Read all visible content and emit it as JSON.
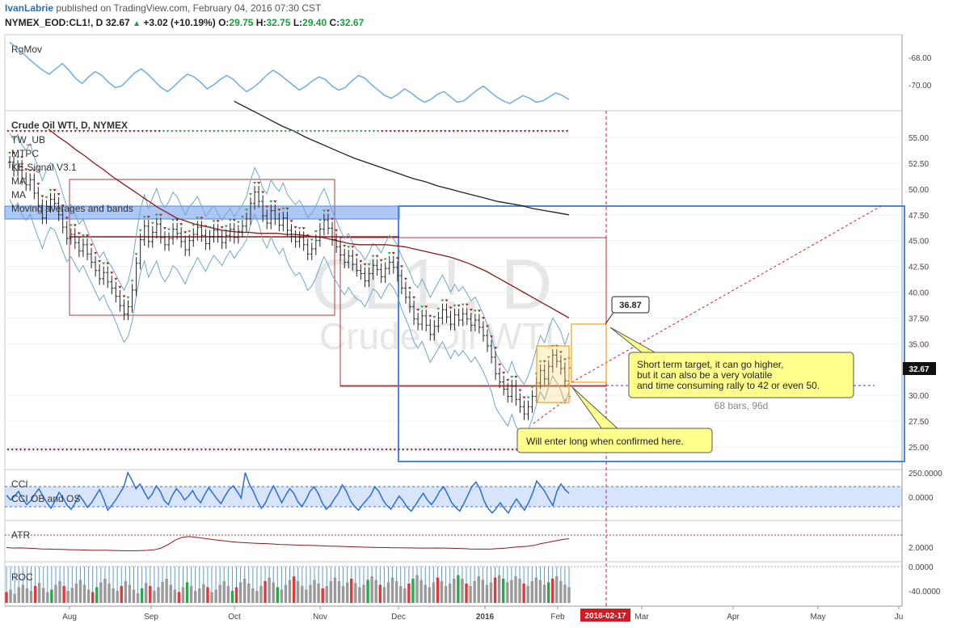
{
  "header": {
    "author": "IvanLabrie",
    "published": "published on TradingView.com, February 04, 2016 07:30 CST",
    "symbol": "NYMEX_EOD:CL1!, D",
    "last": "32.67",
    "arrow": "▲",
    "change": "+3.02 (+10.19%)",
    "o_label": "O:",
    "o": "29.75",
    "h_label": "H:",
    "h": "32.75",
    "l_label": "L:",
    "l": "29.40",
    "c_label": "C:",
    "c": "32.67"
  },
  "watermark": {
    "ticker": "CL1!, D",
    "name": "Crude Oil WTI"
  },
  "colors": {
    "up": "#1a7a2a",
    "down": "#b31c1c",
    "band": "#6fa7c9",
    "ma_red": "#8b1a1a",
    "ma_black": "#222222",
    "blue_box": "#4a86e8",
    "note_bg": "#ffff8c",
    "date_tag": "#d8181f"
  },
  "rgmov": {
    "label": "RgMov",
    "ticks": [
      "-68.00",
      "-70.00"
    ],
    "values": [
      -66.8,
      -67.2,
      -67.6,
      -68.1,
      -68.5,
      -68.9,
      -69.2,
      -68.8,
      -68.4,
      -68.9,
      -69.5,
      -69.9,
      -69.4,
      -69.0,
      -69.3,
      -69.8,
      -70.2,
      -70.1,
      -69.6,
      -69.1,
      -68.8,
      -69.2,
      -69.7,
      -70.2,
      -70.5,
      -70.1,
      -69.6,
      -69.2,
      -69.4,
      -69.8,
      -70.3,
      -70.0,
      -69.6,
      -69.3,
      -69.6,
      -70.1,
      -70.5,
      -70.2,
      -69.8,
      -69.3,
      -68.9,
      -69.2,
      -69.6,
      -70.0,
      -70.4,
      -70.1,
      -69.7,
      -69.4,
      -69.6,
      -70.1,
      -70.4,
      -70.2,
      -69.7,
      -69.3,
      -69.5,
      -70.0,
      -70.4,
      -70.8,
      -71.0,
      -70.7,
      -70.3,
      -70.6,
      -71.0,
      -71.3,
      -71.1,
      -70.7,
      -70.5,
      -70.9,
      -71.3,
      -71.2,
      -70.8,
      -70.4,
      -70.1,
      -70.5,
      -70.9,
      -71.2,
      -71.4,
      -71.1,
      -70.8,
      -71.0,
      -71.3,
      -71.2,
      -70.9,
      -70.6,
      -70.8,
      -71.1
    ]
  },
  "price": {
    "title": "Crude Oil WTI, D, NYMEX",
    "legend": [
      "TW_UB",
      "MTPC",
      "KE Signal V3.1",
      "MA",
      "MA",
      "Moving averages and bands"
    ],
    "ticks": [
      "55.00",
      "52.50",
      "50.00",
      "47.50",
      "45.00",
      "42.50",
      "40.00",
      "37.50",
      "35.00",
      "32.67",
      "30.00",
      "27.50",
      "25.00"
    ],
    "last_tag": "32.67",
    "target_label": "36.87",
    "bars_note": "68 bars, 96d",
    "note_target": [
      "Short term target, it can go higher,",
      "but it can also be a very volatile",
      "and time consuming rally to 42 or even 50."
    ],
    "note_entry": "Will enter long when confirmed here.",
    "closes": [
      52.6,
      51.8,
      52.2,
      51.0,
      50.4,
      50.9,
      49.6,
      48.4,
      47.2,
      48.3,
      49.0,
      48.6,
      47.5,
      46.3,
      45.2,
      45.6,
      44.8,
      44.0,
      44.6,
      43.7,
      42.9,
      42.1,
      41.3,
      41.9,
      41.0,
      40.4,
      39.6,
      38.7,
      37.9,
      38.6,
      40.2,
      42.8,
      45.1,
      46.4,
      44.9,
      45.8,
      46.6,
      45.3,
      44.6,
      45.2,
      46.1,
      45.7,
      44.9,
      44.1,
      45.0,
      45.6,
      46.3,
      45.5,
      44.7,
      45.4,
      46.0,
      45.4,
      44.8,
      45.5,
      46.1,
      45.3,
      45.9,
      46.4,
      47.1,
      48.6,
      49.7,
      48.8,
      47.4,
      46.7,
      47.9,
      47.1,
      46.5,
      47.2,
      46.0,
      45.4,
      44.9,
      45.3,
      44.6,
      43.7,
      44.2,
      45.0,
      46.1,
      47.0,
      46.2,
      45.1,
      44.4,
      43.6,
      42.9,
      43.5,
      42.7,
      42.1,
      41.8,
      41.1,
      41.8,
      42.6,
      42.2,
      41.5,
      42.3,
      42.9,
      42.4,
      41.6,
      40.4,
      39.5,
      38.6,
      37.4,
      36.9,
      37.7,
      36.8,
      35.9,
      36.7,
      37.5,
      38.3,
      37.6,
      36.9,
      37.8,
      37.3,
      37.9,
      37.4,
      36.8,
      37.3,
      36.6,
      35.8,
      34.8,
      33.7,
      32.1,
      31.3,
      30.6,
      29.9,
      30.9,
      29.6,
      28.9,
      28.2,
      28.9,
      29.9,
      31.2,
      32.4,
      31.6,
      32.8,
      33.9,
      33.3,
      32.6,
      31.4,
      32.67
    ],
    "ma_fast": [
      55.8,
      55.1,
      54.5,
      53.8,
      53.2,
      52.5,
      51.9,
      51.2,
      50.6,
      50.0,
      49.4,
      48.8,
      48.2,
      47.7,
      47.2,
      46.9,
      46.6,
      46.4,
      46.2,
      46.0,
      45.9,
      45.8,
      45.8,
      45.7,
      45.7,
      45.7,
      45.6,
      45.6,
      45.5,
      45.4,
      45.3,
      45.1,
      44.9,
      44.7,
      44.6,
      44.6,
      44.6,
      44.6,
      44.5,
      44.4,
      44.2,
      44.0,
      43.8,
      43.6,
      43.4,
      43.1,
      42.8,
      42.4,
      42.0,
      41.5,
      41.0,
      40.5,
      40.0,
      39.5,
      39.0,
      38.5,
      38.0,
      37.5
    ],
    "ma_slow": [
      58.5,
      57.9,
      57.3,
      56.7,
      56.1,
      55.6,
      55.0,
      54.5,
      54.0,
      53.5,
      53.0,
      52.6,
      52.2,
      51.8,
      51.4,
      51.0,
      50.7,
      50.3,
      50.0,
      49.7,
      49.4,
      49.1,
      48.8,
      48.6,
      48.4,
      48.1,
      47.9,
      47.7,
      47.5
    ],
    "ma_slow_x0": 55
  },
  "cci": {
    "label": "CCI",
    "label2": "CCI OB and OS",
    "ticks": [
      "250.0000",
      "0.0000"
    ],
    "values": [
      20,
      -30,
      10,
      60,
      -20,
      -80,
      -40,
      30,
      90,
      10,
      -60,
      -120,
      -40,
      50,
      -10,
      -90,
      -130,
      -60,
      20,
      -40,
      -110,
      -60,
      10,
      80,
      -20,
      -140,
      -90,
      -30,
      40,
      110,
      260,
      180,
      90,
      140,
      60,
      -20,
      30,
      120,
      60,
      -40,
      -80,
      20,
      90,
      40,
      -30,
      10,
      70,
      -10,
      -60,
      30,
      100,
      40,
      -20,
      -70,
      10,
      80,
      120,
      60,
      -10,
      260,
      140,
      60,
      -40,
      -120,
      -60,
      40,
      120,
      30,
      -60,
      20,
      90,
      40,
      -50,
      -100,
      -30,
      60,
      110,
      40,
      -60,
      -130,
      -90,
      -20,
      40,
      130,
      60,
      -40,
      -100,
      -140,
      -80,
      -30,
      20,
      110,
      60,
      -30,
      -90,
      -130,
      -60,
      10,
      -40,
      -110,
      -150,
      -90,
      -20,
      40,
      -30,
      -80,
      -20,
      60,
      110,
      30,
      -60,
      -110,
      -150,
      -70,
      20,
      110,
      160,
      90,
      -40,
      -120,
      -170,
      -120,
      -60,
      -120,
      -170,
      -90,
      -20,
      -80,
      -140,
      -60,
      40,
      170,
      120,
      60,
      -20,
      -90,
      60,
      140,
      80,
      40
    ]
  },
  "atr": {
    "label": "ATR",
    "ticks": [
      "2.0000"
    ],
    "values": [
      1.95,
      1.9,
      1.92,
      1.88,
      1.85,
      1.8,
      1.78,
      1.76,
      1.75,
      1.72,
      1.7,
      1.68,
      1.66,
      1.65,
      1.66,
      1.64,
      1.62,
      1.6,
      1.6,
      1.62,
      1.65,
      1.7,
      1.9,
      2.3,
      2.8,
      3.1,
      3.2,
      3.1,
      3.0,
      2.9,
      2.8,
      2.7,
      2.62,
      2.55,
      2.5,
      2.45,
      2.42,
      2.4,
      2.35,
      2.3,
      2.28,
      2.25,
      2.22,
      2.2,
      2.18,
      2.15,
      2.12,
      2.1,
      2.08,
      2.05,
      2.02,
      2.0,
      1.98,
      1.96,
      1.95,
      1.94,
      1.93,
      1.92,
      1.91,
      1.9,
      1.9,
      1.91,
      1.9,
      1.88,
      1.86,
      1.84,
      1.8,
      1.78,
      1.78,
      1.8,
      1.85,
      1.9,
      1.98,
      2.05,
      2.1,
      2.2,
      2.4,
      2.55,
      2.7,
      2.85,
      2.95
    ]
  },
  "roc": {
    "label": "ROC",
    "ticks": [
      "0.0000",
      "-40.0000"
    ],
    "values": [
      -18,
      -22,
      -15,
      -26,
      -30,
      -24,
      -20,
      -28,
      -33,
      -25,
      -18,
      -22,
      -30,
      -36,
      -28,
      -20,
      -25,
      -32,
      -38,
      -30,
      -22,
      -18,
      -26,
      -34,
      -40,
      -32,
      -24,
      -20,
      -28,
      -36,
      -30,
      -22,
      -16,
      -24,
      -33,
      -28,
      -20,
      -26,
      -35,
      -40,
      -30,
      -22,
      -18,
      -26,
      -34,
      -28,
      -20,
      -24,
      -31,
      -26,
      -18,
      -22,
      -30,
      -36,
      -28,
      -20,
      -26,
      -34,
      -40,
      -32,
      -24,
      -20,
      -28,
      -36,
      -42,
      -34,
      -26,
      -22,
      -30,
      -38,
      -44,
      -36,
      -28,
      -22,
      -30,
      -38,
      -32,
      -24,
      -28,
      -36,
      -42,
      -36,
      -28,
      -34,
      -40,
      -33,
      -26,
      -30,
      -38,
      -44,
      -38,
      -30,
      -26,
      -34,
      -42,
      -36,
      -28,
      -24,
      -32,
      -40,
      -46,
      -38,
      -30,
      -26,
      -34,
      -42,
      -36,
      -28,
      -32,
      -40,
      -46,
      -40,
      -32,
      -28,
      -36,
      -44,
      -38,
      -30,
      -34,
      -42,
      -46,
      -40,
      -34,
      -38,
      -44,
      -40,
      -32,
      -28,
      -36,
      -42,
      -38,
      -30,
      -34,
      -40,
      -44,
      -36,
      -30,
      -26
    ]
  },
  "x_axis": {
    "labels": [
      "Aug",
      "Sep",
      "Oct",
      "Nov",
      "Dec",
      "2016",
      "Feb",
      "Mar",
      "Apr",
      "May",
      "Ju"
    ],
    "date_tag": "2016-02-17"
  },
  "chart_data": {
    "type": "line",
    "title": "Crude Oil WTI, D, NYMEX",
    "ylabel": "",
    "ylim": [
      23.5,
      57.5
    ],
    "x_labels": [
      "Aug",
      "Sep",
      "Oct",
      "Nov",
      "Dec",
      "2016",
      "Feb",
      "Mar",
      "Apr",
      "May",
      "Ju"
    ],
    "series": [
      {
        "name": "",
        "values": [
          52.6,
          51.8,
          52.2,
          51.0,
          50.4,
          50.9,
          49.6,
          48.4,
          47.2,
          48.3,
          49.0,
          48.6,
          47.5,
          46.3,
          45.2,
          45.6,
          44.8,
          44.0,
          44.6,
          43.7,
          42.9,
          42.1,
          41.3,
          41.9,
          41.0,
          40.4,
          39.6,
          38.7,
          37.9,
          38.6,
          40.2,
          42.8,
          45.1,
          46.4,
          44.9,
          45.8,
          46.6,
          45.3,
          44.6,
          45.2,
          46.1,
          45.7,
          44.9,
          44.1,
          45.0,
          45.6,
          46.3,
          45.5,
          44.7,
          45.4,
          46.0,
          45.4,
          44.8,
          45.5,
          46.1,
          45.3,
          45.9,
          46.4,
          47.1,
          48.6,
          49.7,
          48.8,
          47.4,
          46.7,
          47.9,
          47.1,
          46.5,
          47.2,
          46.0,
          45.4,
          44.9,
          45.3,
          44.6,
          43.7,
          44.2,
          45.0,
          46.1,
          47.0,
          46.2,
          45.1,
          44.4,
          43.6,
          42.9,
          43.5,
          42.7,
          42.1,
          41.8,
          41.1,
          41.8,
          42.6,
          42.2,
          41.5,
          42.3,
          42.9,
          42.4,
          41.6,
          40.4,
          39.5,
          38.6,
          37.4,
          36.9,
          37.7,
          36.8,
          35.9,
          36.7,
          37.5,
          38.3,
          37.6,
          36.9,
          37.8,
          37.3,
          37.9,
          37.4,
          36.8,
          37.3,
          36.6,
          35.8,
          34.8,
          33.7,
          32.1,
          31.3,
          30.6,
          29.9,
          30.9,
          29.6,
          28.9,
          28.2,
          28.9,
          29.9,
          31.2,
          32.4,
          31.6,
          32.8,
          33.9,
          33.3,
          32.6,
          31.4,
          32.67
        ]
      }
    ],
    "annotations": [
      "36.87",
      "68 bars, 96d",
      "Will enter long when confirmed here."
    ],
    "last_value": 32.67,
    "grid": true,
    "legend": "top-left"
  }
}
